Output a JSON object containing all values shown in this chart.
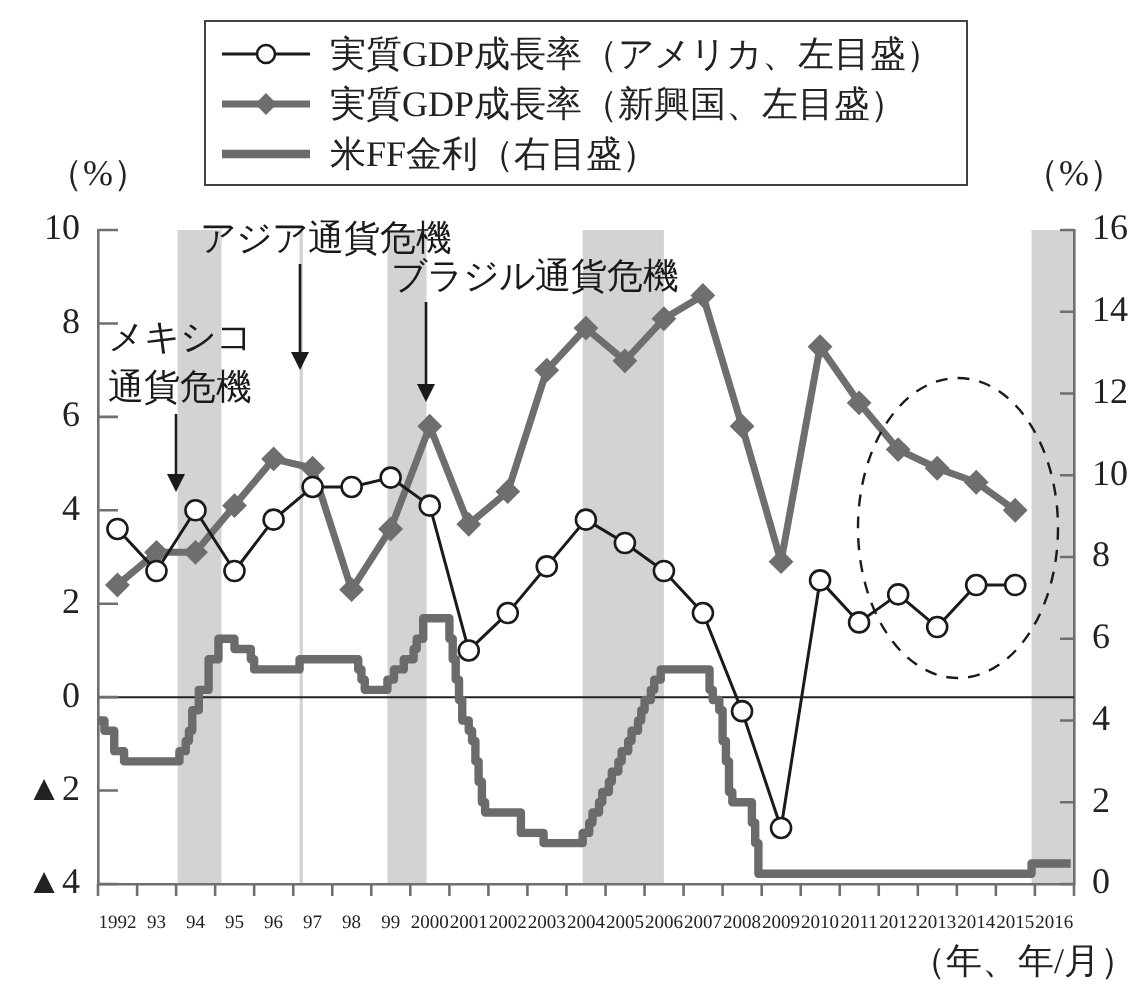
{
  "chart_data": {
    "type": "line",
    "x": [
      "1992-07",
      "1993-07",
      "1994-07",
      "1995-07",
      "1996-07",
      "1997-07",
      "1998-07",
      "1999-07",
      "2000-07",
      "2001-07",
      "2002-07",
      "2003-07",
      "2004-07",
      "2005-07",
      "2006-07",
      "2007-07",
      "2008-07",
      "2009-07",
      "2010-07",
      "2011-07",
      "2012-07",
      "2013-07",
      "2014-07",
      "2015-07"
    ],
    "series": [
      {
        "name": "実質GDP成長率（アメリカ、左目盛）",
        "color": "#1a1a1a",
        "marker": "circle",
        "values": [
          3.6,
          2.7,
          4.0,
          2.7,
          3.8,
          4.5,
          4.5,
          4.7,
          4.1,
          1.0,
          1.8,
          2.8,
          3.8,
          3.3,
          2.7,
          1.8,
          -0.3,
          -2.8,
          2.5,
          1.6,
          2.2,
          1.5,
          2.4,
          2.4
        ]
      },
      {
        "name": "実質GDP成長率（新興国、左目盛）",
        "color": "#6e6e70",
        "marker": "diamond",
        "values": [
          2.4,
          3.1,
          3.1,
          4.1,
          5.1,
          4.9,
          2.3,
          3.6,
          5.8,
          3.7,
          4.4,
          7.0,
          7.9,
          7.2,
          8.1,
          8.6,
          5.8,
          2.9,
          7.5,
          6.3,
          5.3,
          4.9,
          4.6,
          4.0
        ]
      },
      {
        "name": "米FF金利（右目盛）",
        "color": "#6b6b6d",
        "type": "step",
        "axis": "y2",
        "marker": "none",
        "x": [
          "1992-01",
          "1992-03",
          "1992-06",
          "1992-09",
          "1994-02",
          "1994-04",
          "1994-05",
          "1994-06",
          "1994-08",
          "1994-11",
          "1995-02",
          "1995-07",
          "1995-12",
          "1996-01",
          "1997-03",
          "1998-09",
          "1998-10",
          "1998-11",
          "1999-06",
          "1999-08",
          "1999-11",
          "2000-02",
          "2000-03",
          "2000-05",
          "2001-01",
          "2001-02",
          "2001-03",
          "2001-04",
          "2001-05",
          "2001-07",
          "2001-08",
          "2001-09",
          "2001-10",
          "2001-11",
          "2001-12",
          "2002-11",
          "2003-06",
          "2004-06",
          "2004-08",
          "2004-09",
          "2004-11",
          "2004-12",
          "2005-02",
          "2005-03",
          "2005-05",
          "2005-06",
          "2005-08",
          "2005-09",
          "2005-11",
          "2005-12",
          "2006-01",
          "2006-03",
          "2006-04",
          "2006-06",
          "2007-09",
          "2007-10",
          "2007-12",
          "2008-01",
          "2008-02",
          "2008-03",
          "2008-04",
          "2008-10",
          "2008-11",
          "2008-12",
          "2015-12",
          "2016-12"
        ],
        "values": [
          4.0,
          3.75,
          3.25,
          3.0,
          3.25,
          3.5,
          3.75,
          4.25,
          4.75,
          5.5,
          6.0,
          5.75,
          5.5,
          5.25,
          5.5,
          5.25,
          5.0,
          4.75,
          5.0,
          5.25,
          5.5,
          5.75,
          6.0,
          6.5,
          6.0,
          5.5,
          5.0,
          4.5,
          4.0,
          3.75,
          3.5,
          3.0,
          2.5,
          2.0,
          1.75,
          1.25,
          1.0,
          1.25,
          1.5,
          1.75,
          2.0,
          2.25,
          2.5,
          2.75,
          3.0,
          3.25,
          3.5,
          3.75,
          4.0,
          4.25,
          4.5,
          4.75,
          5.0,
          5.25,
          4.75,
          4.5,
          4.25,
          3.5,
          3.0,
          2.25,
          2.0,
          1.5,
          1.0,
          0.25,
          0.5,
          0.5
        ]
      }
    ],
    "xlim": [
      "1992-01",
      "2017-01"
    ],
    "xticks": [
      {
        "value": "1992-01",
        "label": null
      },
      {
        "value": "1992-07",
        "label": "1992"
      },
      {
        "value": "1993-01",
        "label": null
      },
      {
        "value": "1993-07",
        "label": "93"
      },
      {
        "value": "1994-01",
        "label": null
      },
      {
        "value": "1994-07",
        "label": "94"
      },
      {
        "value": "1995-01",
        "label": null
      },
      {
        "value": "1995-07",
        "label": "95"
      },
      {
        "value": "1996-01",
        "label": null
      },
      {
        "value": "1996-07",
        "label": "96"
      },
      {
        "value": "1997-01",
        "label": null
      },
      {
        "value": "1997-07",
        "label": "97"
      },
      {
        "value": "1998-01",
        "label": null
      },
      {
        "value": "1998-07",
        "label": "98"
      },
      {
        "value": "1999-01",
        "label": null
      },
      {
        "value": "1999-07",
        "label": "99"
      },
      {
        "value": "2000-01",
        "label": null
      },
      {
        "value": "2000-07",
        "label": "2000"
      },
      {
        "value": "2001-01",
        "label": null
      },
      {
        "value": "2001-07",
        "label": "2001"
      },
      {
        "value": "2002-01",
        "label": null
      },
      {
        "value": "2002-07",
        "label": "2002"
      },
      {
        "value": "2003-01",
        "label": null
      },
      {
        "value": "2003-07",
        "label": "2003"
      },
      {
        "value": "2004-01",
        "label": null
      },
      {
        "value": "2004-07",
        "label": "2004"
      },
      {
        "value": "2005-01",
        "label": null
      },
      {
        "value": "2005-07",
        "label": "2005"
      },
      {
        "value": "2006-01",
        "label": null
      },
      {
        "value": "2006-07",
        "label": "2006"
      },
      {
        "value": "2007-01",
        "label": null
      },
      {
        "value": "2007-07",
        "label": "2007"
      },
      {
        "value": "2008-01",
        "label": null
      },
      {
        "value": "2008-07",
        "label": "2008"
      },
      {
        "value": "2009-01",
        "label": null
      },
      {
        "value": "2009-07",
        "label": "2009"
      },
      {
        "value": "2010-01",
        "label": null
      },
      {
        "value": "2010-07",
        "label": "2010"
      },
      {
        "value": "2011-01",
        "label": null
      },
      {
        "value": "2011-07",
        "label": "2011"
      },
      {
        "value": "2012-01",
        "label": null
      },
      {
        "value": "2012-07",
        "label": "2012"
      },
      {
        "value": "2013-01",
        "label": null
      },
      {
        "value": "2013-07",
        "label": "2013"
      },
      {
        "value": "2014-01",
        "label": null
      },
      {
        "value": "2014-07",
        "label": "2014"
      },
      {
        "value": "2015-01",
        "label": null
      },
      {
        "value": "2015-07",
        "label": "2015"
      },
      {
        "value": "2016-01",
        "label": null
      },
      {
        "value": "2016-07",
        "label": "2016"
      },
      {
        "value": "2017-01",
        "label": null
      }
    ],
    "ylim": [
      -4,
      10
    ],
    "yticks": [
      {
        "value": -4,
        "label": "▲4"
      },
      {
        "value": -2,
        "label": "▲2"
      },
      0,
      2,
      4,
      6,
      8,
      10
    ],
    "y2lim": [
      0,
      16
    ],
    "y2ticks": [
      0,
      2,
      4,
      6,
      8,
      10,
      12,
      14,
      16
    ],
    "xlabel": "（年、年/月）",
    "ylabel": "（%）",
    "y2label": "（%）",
    "legend": "top",
    "ref_lines": [
      {
        "axis": "y",
        "value": 0,
        "color": "#222222"
      }
    ],
    "bands": [
      {
        "axis": "x",
        "from": "1994-01-15",
        "to": "1995-03",
        "color": "#d2d3d5"
      },
      {
        "axis": "x",
        "from": "1997-03",
        "to": "1997-04",
        "color": "#d2d3d5"
      },
      {
        "axis": "x",
        "from": "1999-06",
        "to": "2000-06",
        "color": "#d2d3d5"
      },
      {
        "axis": "x",
        "from": "2004-06",
        "to": "2006-07",
        "color": "#d2d3d5"
      },
      {
        "axis": "x",
        "from": "2015-12",
        "to": "2017-01",
        "color": "#d2d3d5"
      }
    ],
    "annotations": [
      {
        "text": "メキシコ通貨危機",
        "x": "1994-01",
        "y": 4.4
      },
      {
        "text": "アジア通貨危機",
        "x": "1997-03",
        "y": 7.0
      },
      {
        "text": "ブラジル通貨危機",
        "x": "2000-06",
        "y": 6.3
      }
    ]
  }
}
